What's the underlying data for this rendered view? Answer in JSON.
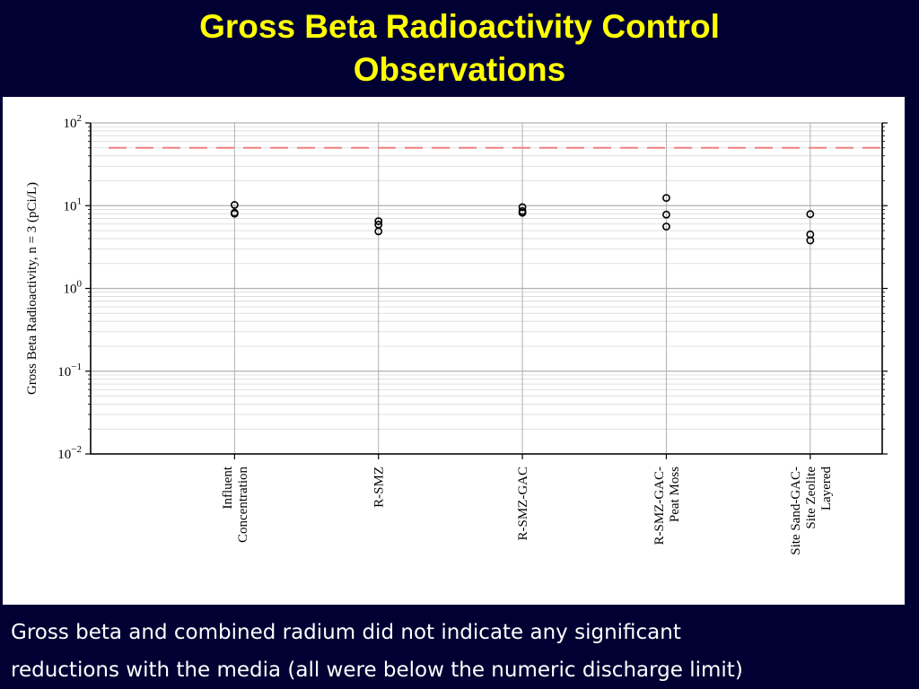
{
  "slide": {
    "title_line1": "Gross Beta Radioactivity Control",
    "title_line2": "Observations",
    "caption_line1": "Gross beta and combined radium did not indicate any significant",
    "caption_line2": "reductions with the media (all were below the numeric discharge limit)"
  },
  "colors": {
    "background": "#000033",
    "title": "#ffff00",
    "limit_line": "#f08080",
    "markers": "#000000"
  },
  "chart_data": {
    "type": "scatter",
    "title": "",
    "ylabel": "Gross Beta Radioactivity, n = 3 (pCi/L)",
    "xlabel": "",
    "yscale": "log",
    "ylim": [
      0.01,
      100
    ],
    "grid": true,
    "marker": "open-circle",
    "ytick_labels": [
      "10^-2",
      "10^-1",
      "10^0",
      "10^1",
      "10^2"
    ],
    "categories": [
      [
        "Influent",
        "Concentration"
      ],
      [
        "R-SMZ"
      ],
      [
        "R-SMZ-GAC"
      ],
      [
        "R-SMZ-GAC-",
        "Peat Moss"
      ],
      [
        "Site Sand-GAC-",
        "Site Zeolite",
        "Layered"
      ]
    ],
    "values": [
      [
        10.2,
        8.2,
        8.0
      ],
      [
        6.5,
        5.9,
        4.9
      ],
      [
        9.6,
        8.6,
        8.2
      ],
      [
        12.4,
        7.8,
        5.6
      ],
      [
        7.9,
        4.5,
        3.8
      ]
    ],
    "reference_line": {
      "y": 50,
      "style": "dashed"
    }
  }
}
